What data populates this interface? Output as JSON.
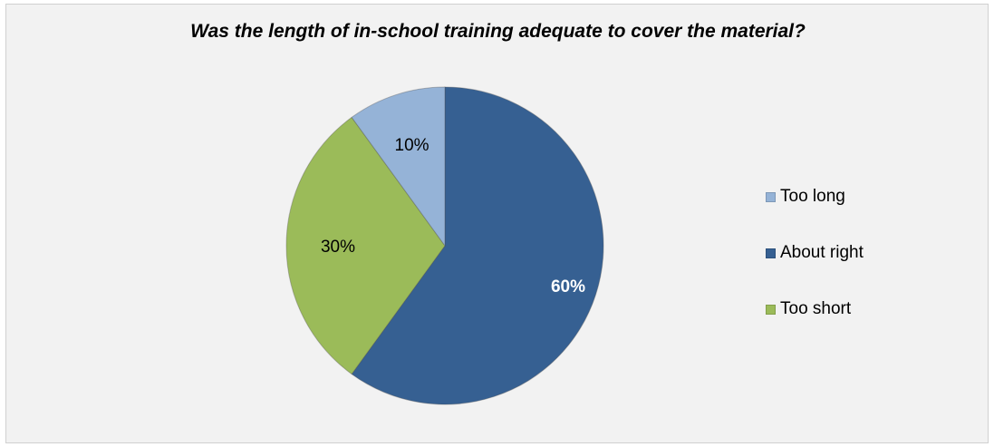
{
  "chart_data": {
    "type": "pie",
    "title": "Was the length of in-school training adequate to cover the material?",
    "categories": [
      "Too long",
      "About right",
      "Too short"
    ],
    "values": [
      10,
      60,
      30
    ],
    "data_labels": [
      "10%",
      "60%",
      "30%"
    ],
    "colors": [
      "#95b3d7",
      "#366092",
      "#9bbb59"
    ],
    "label_colors": [
      "#000000",
      "#ffffff",
      "#000000"
    ],
    "legend_position": "right",
    "start_angle_deg": 0,
    "background": "#f2f2f2"
  }
}
